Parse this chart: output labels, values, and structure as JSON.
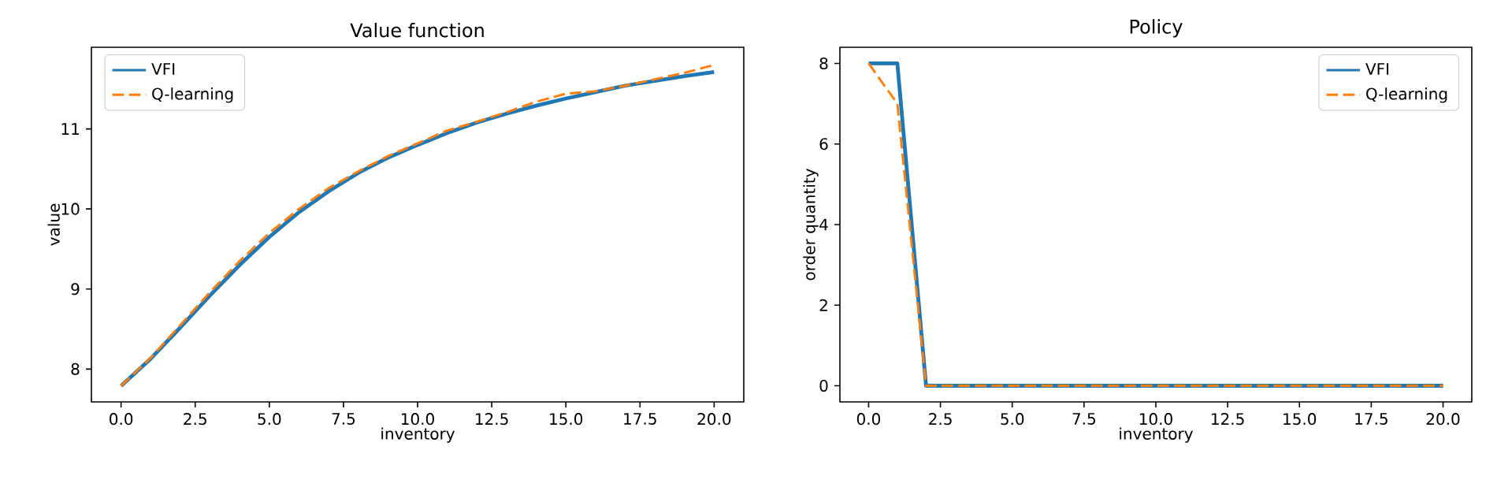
{
  "chart_data": [
    {
      "type": "line",
      "title": "Value function",
      "xlabel": "inventory",
      "ylabel": "value",
      "x": [
        0,
        1,
        2,
        3,
        4,
        5,
        6,
        7,
        8,
        9,
        10,
        11,
        12,
        13,
        14,
        15,
        16,
        17,
        18,
        19,
        20
      ],
      "xlim": [
        -1,
        21
      ],
      "ylim": [
        7.59,
        12.02
      ],
      "xticks": [
        {
          "value": 0,
          "label": "0.0"
        },
        {
          "value": 2.5,
          "label": "2.5"
        },
        {
          "value": 5,
          "label": "5.0"
        },
        {
          "value": 7.5,
          "label": "7.5"
        },
        {
          "value": 10,
          "label": "10.0"
        },
        {
          "value": 12.5,
          "label": "12.5"
        },
        {
          "value": 15,
          "label": "15.0"
        },
        {
          "value": 17.5,
          "label": "17.5"
        },
        {
          "value": 20,
          "label": "20.0"
        }
      ],
      "yticks": [
        8,
        9,
        10,
        11
      ],
      "legend": "top left",
      "series": [
        {
          "name": "VFI",
          "color": "#1f77b4",
          "line_style": "solid",
          "values": [
            7.79,
            8.13,
            8.52,
            8.92,
            9.3,
            9.65,
            9.96,
            10.22,
            10.45,
            10.64,
            10.8,
            10.95,
            11.08,
            11.19,
            11.29,
            11.38,
            11.46,
            11.54,
            11.6,
            11.66,
            11.71
          ]
        },
        {
          "name": "Q-learning",
          "color": "#ff7f0e",
          "line_style": "dashed",
          "values": [
            7.79,
            8.14,
            8.55,
            8.96,
            9.35,
            9.7,
            10.0,
            10.26,
            10.47,
            10.66,
            10.82,
            10.98,
            11.09,
            11.21,
            11.34,
            11.44,
            11.47,
            11.54,
            11.62,
            11.7,
            11.8
          ]
        }
      ]
    },
    {
      "type": "line",
      "title": "Policy",
      "xlabel": "inventory",
      "ylabel": "order quantity",
      "x": [
        0,
        1,
        2,
        3,
        4,
        5,
        6,
        7,
        8,
        9,
        10,
        11,
        12,
        13,
        14,
        15,
        16,
        17,
        18,
        19,
        20
      ],
      "xlim": [
        -1,
        21
      ],
      "ylim": [
        -0.4,
        8.4
      ],
      "xticks": [
        {
          "value": 0,
          "label": "0.0"
        },
        {
          "value": 2.5,
          "label": "2.5"
        },
        {
          "value": 5,
          "label": "5.0"
        },
        {
          "value": 7.5,
          "label": "7.5"
        },
        {
          "value": 10,
          "label": "10.0"
        },
        {
          "value": 12.5,
          "label": "12.5"
        },
        {
          "value": 15,
          "label": "15.0"
        },
        {
          "value": 17.5,
          "label": "17.5"
        },
        {
          "value": 20,
          "label": "20.0"
        }
      ],
      "yticks": [
        0,
        2,
        4,
        6,
        8
      ],
      "legend": "top right",
      "series": [
        {
          "name": "VFI",
          "color": "#1f77b4",
          "line_style": "solid",
          "values": [
            8,
            8,
            0,
            0,
            0,
            0,
            0,
            0,
            0,
            0,
            0,
            0,
            0,
            0,
            0,
            0,
            0,
            0,
            0,
            0,
            0
          ]
        },
        {
          "name": "Q-learning",
          "color": "#ff7f0e",
          "line_style": "dashed",
          "values": [
            8,
            7,
            0,
            0,
            0,
            0,
            0,
            0,
            0,
            0,
            0,
            0,
            0,
            0,
            0,
            0,
            0,
            0,
            0,
            0,
            0
          ]
        }
      ]
    }
  ]
}
